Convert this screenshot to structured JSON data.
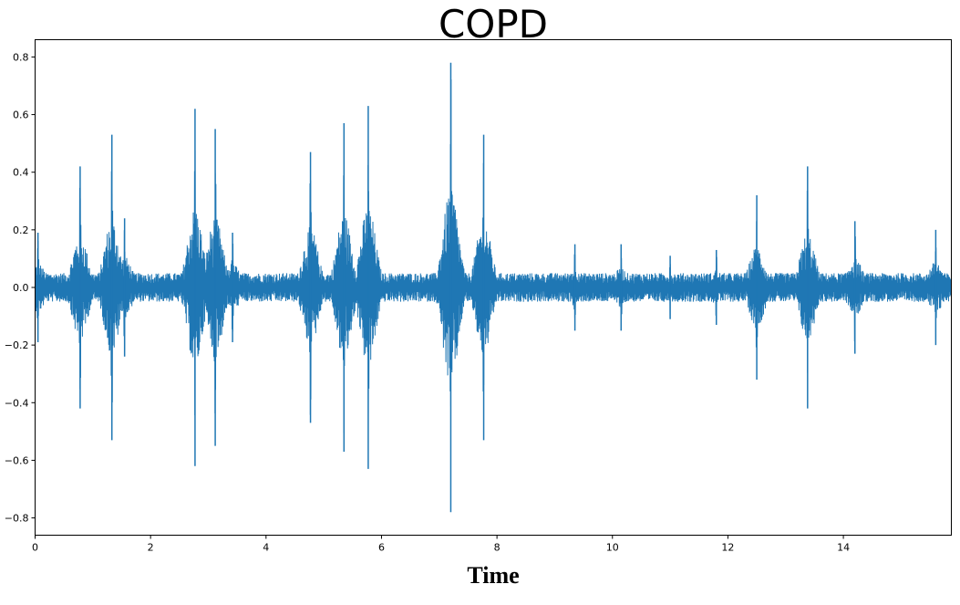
{
  "chart_data": {
    "type": "line",
    "title": "COPD",
    "xlabel": "Time",
    "ylabel": "",
    "xlim": [
      0,
      15.87
    ],
    "ylim": [
      -0.86,
      0.86
    ],
    "grid": false,
    "line_color": "#1f77b4",
    "x_ticks": [
      0,
      2,
      4,
      6,
      8,
      10,
      12,
      14
    ],
    "x_tick_labels": [
      "0",
      "2",
      "4",
      "6",
      "8",
      "10",
      "12",
      "14"
    ],
    "y_ticks": [
      0.8,
      0.6,
      0.4,
      0.2,
      0.0,
      -0.2,
      -0.4,
      -0.6,
      -0.8
    ],
    "y_tick_labels": [
      "0.8",
      "0.6",
      "0.4",
      "0.2",
      "0.0",
      "−0.2",
      "−0.4",
      "−0.6",
      "−0.8"
    ],
    "series": [
      {
        "baseline_amplitude": 0.05,
        "bursts": [
          {
            "t": 0.05,
            "peak": 0.19
          },
          {
            "t": 0.78,
            "peak": 0.42
          },
          {
            "t": 1.33,
            "peak": 0.53
          },
          {
            "t": 1.55,
            "peak": 0.24
          },
          {
            "t": 2.77,
            "peak": 0.62
          },
          {
            "t": 3.12,
            "peak": 0.55
          },
          {
            "t": 3.42,
            "peak": 0.19
          },
          {
            "t": 4.77,
            "peak": 0.47
          },
          {
            "t": 5.35,
            "peak": 0.57
          },
          {
            "t": 5.77,
            "peak": 0.63
          },
          {
            "t": 7.2,
            "peak": 0.78
          },
          {
            "t": 7.77,
            "peak": 0.53
          },
          {
            "t": 9.35,
            "peak": 0.15
          },
          {
            "t": 10.15,
            "peak": 0.15
          },
          {
            "t": 11.0,
            "peak": 0.11
          },
          {
            "t": 11.8,
            "peak": 0.13
          },
          {
            "t": 12.5,
            "peak": 0.32
          },
          {
            "t": 13.38,
            "peak": 0.42
          },
          {
            "t": 14.2,
            "peak": 0.23
          },
          {
            "t": 15.6,
            "peak": 0.2
          }
        ]
      }
    ]
  }
}
